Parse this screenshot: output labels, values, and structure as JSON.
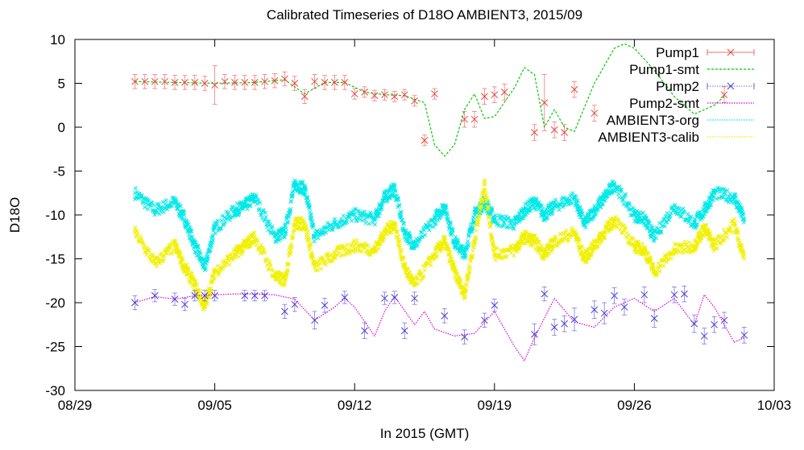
{
  "chart_data": {
    "type": "line",
    "title": "Calibrated Timeseries of D18O AMBIENT3, 2015/09",
    "xlabel": "In 2015 (GMT)",
    "ylabel": "D18O",
    "xlim": [
      "2015-08-29",
      "2015-10-03"
    ],
    "ylim": [
      -30,
      10
    ],
    "x_ticks": [
      "08/29",
      "09/05",
      "09/12",
      "09/19",
      "09/26",
      "10/03"
    ],
    "y_ticks": [
      10,
      5,
      0,
      -5,
      -10,
      -15,
      -20,
      -25,
      -30
    ],
    "grid": false,
    "legend_position": "top-right",
    "series": [
      {
        "name": "Pump1",
        "style": "points-errorbars",
        "marker": "x",
        "color": "#e8453c",
        "x": [
          "2015-09-01 00:00",
          "2015-09-01 12:00",
          "2015-09-02 00:00",
          "2015-09-02 12:00",
          "2015-09-03 00:00",
          "2015-09-03 12:00",
          "2015-09-04 00:00",
          "2015-09-04 12:00",
          "2015-09-05 00:00",
          "2015-09-05 12:00",
          "2015-09-06 00:00",
          "2015-09-06 12:00",
          "2015-09-07 00:00",
          "2015-09-07 12:00",
          "2015-09-08 00:00",
          "2015-09-08 12:00",
          "2015-09-09 00:00",
          "2015-09-09 12:00",
          "2015-09-10 00:00",
          "2015-09-10 12:00",
          "2015-09-11 00:00",
          "2015-09-11 12:00",
          "2015-09-12 00:00",
          "2015-09-12 12:00",
          "2015-09-13 00:00",
          "2015-09-13 12:00",
          "2015-09-14 00:00",
          "2015-09-14 12:00",
          "2015-09-15 00:00",
          "2015-09-15 12:00",
          "2015-09-16 00:00",
          "2015-09-17 12:00",
          "2015-09-18 00:00",
          "2015-09-18 12:00",
          "2015-09-19 00:00",
          "2015-09-19 12:00",
          "2015-09-21 00:00",
          "2015-09-21 12:00",
          "2015-09-22 00:00",
          "2015-09-22 12:00",
          "2015-09-23 00:00",
          "2015-09-24 00:00",
          "2015-09-30 12:00"
        ],
        "y": [
          5.2,
          5.2,
          5.2,
          5.2,
          5.1,
          5.1,
          5.1,
          5.0,
          4.8,
          5.2,
          5.1,
          5.1,
          5.1,
          5.2,
          5.3,
          5.5,
          5.0,
          3.5,
          5.2,
          5.1,
          5.1,
          5.1,
          3.8,
          4.0,
          3.6,
          3.7,
          3.5,
          3.7,
          3.0,
          -1.5,
          3.8,
          0.9,
          0.9,
          3.5,
          3.7,
          4.0,
          -0.6,
          2.8,
          -0.3,
          -0.6,
          4.3,
          1.6,
          3.7
        ],
        "err": [
          0.8,
          0.8,
          0.8,
          0.8,
          0.8,
          0.8,
          0.8,
          0.8,
          2.2,
          0.8,
          0.8,
          0.8,
          0.8,
          0.8,
          0.8,
          0.8,
          0.8,
          0.8,
          0.8,
          0.8,
          0.8,
          0.8,
          0.6,
          0.6,
          0.6,
          0.6,
          0.6,
          0.6,
          0.6,
          0.6,
          0.6,
          0.9,
          0.9,
          0.9,
          0.9,
          0.9,
          0.9,
          3.2,
          0.9,
          0.9,
          0.9,
          0.9,
          0.9
        ]
      },
      {
        "name": "Pump1-smt",
        "style": "dashed-line",
        "color": "#00cc00",
        "x": [
          "2015-09-01 00:00",
          "2015-09-03 00:00",
          "2015-09-05 00:00",
          "2015-09-07 00:00",
          "2015-09-08 12:00",
          "2015-09-09 12:00",
          "2015-09-10 12:00",
          "2015-09-11 12:00",
          "2015-09-12 12:00",
          "2015-09-13 12:00",
          "2015-09-14 12:00",
          "2015-09-15 12:00",
          "2015-09-16 00:00",
          "2015-09-16 12:00",
          "2015-09-17 00:00",
          "2015-09-17 12:00",
          "2015-09-18 00:00",
          "2015-09-18 12:00",
          "2015-09-19 00:00",
          "2015-09-20 00:00",
          "2015-09-20 12:00",
          "2015-09-21 00:00",
          "2015-09-21 12:00",
          "2015-09-22 00:00",
          "2015-09-22 12:00",
          "2015-09-23 00:00",
          "2015-09-24 00:00",
          "2015-09-25 00:00",
          "2015-09-25 12:00",
          "2015-09-26 00:00",
          "2015-09-27 00:00",
          "2015-09-28 00:00",
          "2015-09-29 00:00",
          "2015-09-30 00:00",
          "2015-09-30 12:00"
        ],
        "y": [
          5.2,
          5.1,
          5.0,
          5.1,
          5.4,
          3.8,
          5.1,
          5.1,
          4.0,
          3.7,
          3.6,
          2.8,
          -2.0,
          -3.3,
          -2.0,
          2.0,
          3.8,
          1.0,
          1.2,
          4.5,
          6.8,
          6.0,
          0.0,
          2.0,
          0.0,
          -0.5,
          5.0,
          9.0,
          9.5,
          9.0,
          6.5,
          3.5,
          1.5,
          2.5,
          3.5
        ]
      },
      {
        "name": "Pump2",
        "style": "points-errorbars",
        "marker": "x",
        "color": "#4a3fd4",
        "x": [
          "2015-09-01 00:00",
          "2015-09-02 00:00",
          "2015-09-03 00:00",
          "2015-09-03 12:00",
          "2015-09-04 00:00",
          "2015-09-04 12:00",
          "2015-09-05 00:00",
          "2015-09-06 12:00",
          "2015-09-07 00:00",
          "2015-09-07 12:00",
          "2015-09-08 12:00",
          "2015-09-09 00:00",
          "2015-09-10 00:00",
          "2015-09-10 12:00",
          "2015-09-11 12:00",
          "2015-09-12 12:00",
          "2015-09-13 12:00",
          "2015-09-14 00:00",
          "2015-09-14 12:00",
          "2015-09-15 00:00",
          "2015-09-16 12:00",
          "2015-09-17 12:00",
          "2015-09-18 12:00",
          "2015-09-19 00:00",
          "2015-09-21 00:00",
          "2015-09-21 12:00",
          "2015-09-22 00:00",
          "2015-09-22 12:00",
          "2015-09-23 00:00",
          "2015-09-24 00:00",
          "2015-09-24 12:00",
          "2015-09-25 00:00",
          "2015-09-25 12:00",
          "2015-09-26 12:00",
          "2015-09-27 00:00",
          "2015-09-28 00:00",
          "2015-09-28 12:00",
          "2015-09-29 00:00",
          "2015-09-29 12:00",
          "2015-09-30 00:00",
          "2015-09-30 12:00",
          "2015-10-01 12:00"
        ],
        "y": [
          -20.0,
          -19.2,
          -19.6,
          -20.2,
          -19.2,
          -19.2,
          -19.2,
          -19.2,
          -19.2,
          -19.2,
          -21.0,
          -20.2,
          -22.0,
          -20.3,
          -19.4,
          -23.2,
          -19.5,
          -19.4,
          -23.2,
          -19.5,
          -21.5,
          -23.9,
          -22.0,
          -20.3,
          -23.6,
          -19.0,
          -22.8,
          -22.4,
          -21.9,
          -20.8,
          -21.2,
          -19.2,
          -20.5,
          -19.1,
          -21.8,
          -19.1,
          -19.0,
          -22.4,
          -23.8,
          -22.5,
          -22.0,
          -23.7
        ],
        "err": [
          0.8,
          0.7,
          0.7,
          0.7,
          0.6,
          0.6,
          0.6,
          0.6,
          0.6,
          0.6,
          0.8,
          0.8,
          1.0,
          0.8,
          0.7,
          0.9,
          0.7,
          0.7,
          0.9,
          0.7,
          0.8,
          0.8,
          0.8,
          0.7,
          1.2,
          0.8,
          0.9,
          0.9,
          1.3,
          1.0,
          1.2,
          0.9,
          0.9,
          0.9,
          1.0,
          0.9,
          0.9,
          1.0,
          0.9,
          0.9,
          0.9,
          0.9
        ]
      },
      {
        "name": "Pump2-smt",
        "style": "dotted-line",
        "color": "#d800d8",
        "x": [
          "2015-09-01 00:00",
          "2015-09-02 00:00",
          "2015-09-03 00:00",
          "2015-09-04 00:00",
          "2015-09-05 00:00",
          "2015-09-06 00:00",
          "2015-09-07 00:00",
          "2015-09-08 00:00",
          "2015-09-09 00:00",
          "2015-09-10 00:00",
          "2015-09-11 00:00",
          "2015-09-11 12:00",
          "2015-09-12 00:00",
          "2015-09-13 00:00",
          "2015-09-13 12:00",
          "2015-09-14 00:00",
          "2015-09-15 00:00",
          "2015-09-15 12:00",
          "2015-09-16 00:00",
          "2015-09-17 00:00",
          "2015-09-18 00:00",
          "2015-09-19 00:00",
          "2015-09-20 00:00",
          "2015-09-20 12:00",
          "2015-09-21 00:00",
          "2015-09-22 00:00",
          "2015-09-23 00:00",
          "2015-09-24 00:00",
          "2015-09-25 00:00",
          "2015-09-26 00:00",
          "2015-09-27 00:00",
          "2015-09-28 00:00",
          "2015-09-29 00:00",
          "2015-09-29 12:00",
          "2015-09-30 00:00",
          "2015-10-01 00:00",
          "2015-10-01 12:00"
        ],
        "y": [
          -20.0,
          -19.3,
          -19.6,
          -19.2,
          -19.1,
          -19.0,
          -19.0,
          -19.1,
          -19.6,
          -22.0,
          -20.5,
          -19.5,
          -20.5,
          -23.8,
          -21.0,
          -19.3,
          -22.5,
          -21.0,
          -23.0,
          -23.8,
          -23.5,
          -21.0,
          -25.0,
          -26.6,
          -24.0,
          -19.5,
          -22.2,
          -22.8,
          -20.5,
          -19.5,
          -21.0,
          -19.5,
          -22.5,
          -19.1,
          -20.5,
          -24.5,
          -24.0
        ]
      },
      {
        "name": "AMBIENT3-org",
        "style": "dense-points",
        "marker": "x",
        "color": "#00e8e8",
        "x": [
          "2015-09-01 00:00",
          "2015-09-02 00:00",
          "2015-09-03 00:00",
          "2015-09-03 12:00",
          "2015-09-04 00:00",
          "2015-09-04 12:00",
          "2015-09-05 00:00",
          "2015-09-06 00:00",
          "2015-09-06 12:00",
          "2015-09-07 00:00",
          "2015-09-08 00:00",
          "2015-09-08 12:00",
          "2015-09-09 00:00",
          "2015-09-09 12:00",
          "2015-09-10 00:00",
          "2015-09-11 00:00",
          "2015-09-12 00:00",
          "2015-09-13 00:00",
          "2015-09-13 12:00",
          "2015-09-14 00:00",
          "2015-09-14 12:00",
          "2015-09-15 00:00",
          "2015-09-16 00:00",
          "2015-09-16 12:00",
          "2015-09-17 00:00",
          "2015-09-17 12:00",
          "2015-09-18 00:00",
          "2015-09-18 12:00",
          "2015-09-19 00:00",
          "2015-09-20 00:00",
          "2015-09-20 12:00",
          "2015-09-21 00:00",
          "2015-09-21 12:00",
          "2015-09-22 00:00",
          "2015-09-23 00:00",
          "2015-09-23 12:00",
          "2015-09-24 00:00",
          "2015-09-24 12:00",
          "2015-09-25 00:00",
          "2015-09-26 00:00",
          "2015-09-26 12:00",
          "2015-09-27 00:00",
          "2015-09-28 00:00",
          "2015-09-29 00:00",
          "2015-09-29 12:00",
          "2015-09-30 00:00",
          "2015-10-01 00:00",
          "2015-10-01 12:00"
        ],
        "y": [
          -7.5,
          -9.5,
          -8.5,
          -10.5,
          -13.5,
          -16.0,
          -11.5,
          -9.5,
          -9.0,
          -8.0,
          -12.5,
          -12.0,
          -6.5,
          -7.0,
          -12.5,
          -11.0,
          -10.0,
          -10.5,
          -8.0,
          -7.0,
          -12.0,
          -13.5,
          -10.5,
          -9.0,
          -13.0,
          -14.5,
          -10.0,
          -8.5,
          -10.5,
          -11.0,
          -9.5,
          -8.5,
          -10.0,
          -9.0,
          -8.0,
          -11.0,
          -9.5,
          -8.0,
          -6.5,
          -10.0,
          -10.5,
          -12.5,
          -9.0,
          -11.0,
          -9.5,
          -7.5,
          -8.0,
          -10.5
        ]
      },
      {
        "name": "AMBIENT3-calib",
        "style": "dense-points",
        "marker": "x",
        "color": "#f0f000",
        "x": [
          "2015-09-01 00:00",
          "2015-09-02 00:00",
          "2015-09-03 00:00",
          "2015-09-03 12:00",
          "2015-09-04 00:00",
          "2015-09-04 12:00",
          "2015-09-05 00:00",
          "2015-09-06 00:00",
          "2015-09-06 12:00",
          "2015-09-07 00:00",
          "2015-09-08 00:00",
          "2015-09-08 12:00",
          "2015-09-09 00:00",
          "2015-09-09 12:00",
          "2015-09-10 00:00",
          "2015-09-11 00:00",
          "2015-09-12 00:00",
          "2015-09-13 00:00",
          "2015-09-13 12:00",
          "2015-09-14 00:00",
          "2015-09-14 12:00",
          "2015-09-15 00:00",
          "2015-09-16 00:00",
          "2015-09-16 12:00",
          "2015-09-17 00:00",
          "2015-09-17 12:00",
          "2015-09-18 00:00",
          "2015-09-18 12:00",
          "2015-09-19 00:00",
          "2015-09-20 00:00",
          "2015-09-20 12:00",
          "2015-09-21 00:00",
          "2015-09-21 12:00",
          "2015-09-22 00:00",
          "2015-09-23 00:00",
          "2015-09-23 12:00",
          "2015-09-24 00:00",
          "2015-09-24 12:00",
          "2015-09-25 00:00",
          "2015-09-26 00:00",
          "2015-09-26 12:00",
          "2015-09-27 00:00",
          "2015-09-28 00:00",
          "2015-09-29 00:00",
          "2015-09-29 12:00",
          "2015-09-30 00:00",
          "2015-10-01 00:00",
          "2015-10-01 12:00"
        ],
        "y": [
          -12.0,
          -15.5,
          -13.5,
          -16.0,
          -18.0,
          -20.5,
          -16.5,
          -14.5,
          -13.5,
          -12.5,
          -17.0,
          -17.5,
          -11.0,
          -11.0,
          -16.0,
          -14.5,
          -13.5,
          -14.0,
          -12.0,
          -11.0,
          -16.0,
          -18.0,
          -14.5,
          -13.0,
          -16.5,
          -19.0,
          -13.0,
          -6.5,
          -14.5,
          -14.0,
          -12.5,
          -13.0,
          -14.5,
          -13.0,
          -12.0,
          -15.0,
          -13.5,
          -12.0,
          -10.5,
          -13.5,
          -14.0,
          -16.5,
          -14.0,
          -13.5,
          -11.5,
          -13.5,
          -11.0,
          -15.0
        ]
      }
    ]
  }
}
